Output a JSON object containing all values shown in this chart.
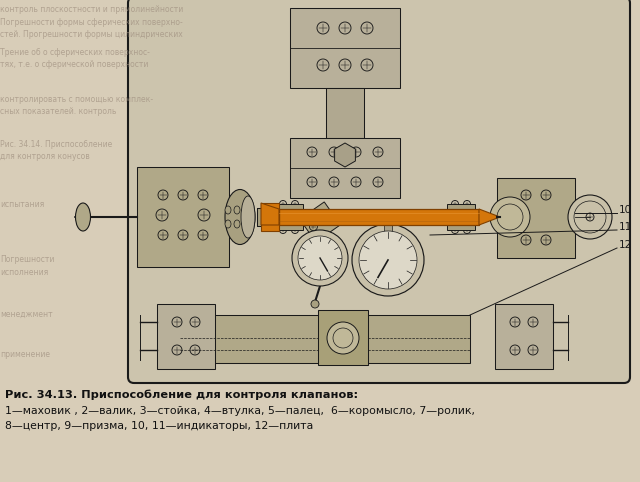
{
  "caption_bold": "Рис. 34.13. Приспособление для контроля клапанов:",
  "caption_line1": "1—маховик , 2—валик, 3—стойка, 4—втулка, 5—палец,  6—коромысло, 7—ролик,",
  "caption_line2": "8—центр, 9—призма, 10, 11—индикаторы, 12—плита",
  "page_color": "#d8cdb8",
  "drawing_bg": "#ccc4ad",
  "orange_color": "#d4760a",
  "line_color": "#1a1a1a",
  "fig_width": 6.4,
  "fig_height": 4.82,
  "label10": "10",
  "label11": "11",
  "label12": "12"
}
